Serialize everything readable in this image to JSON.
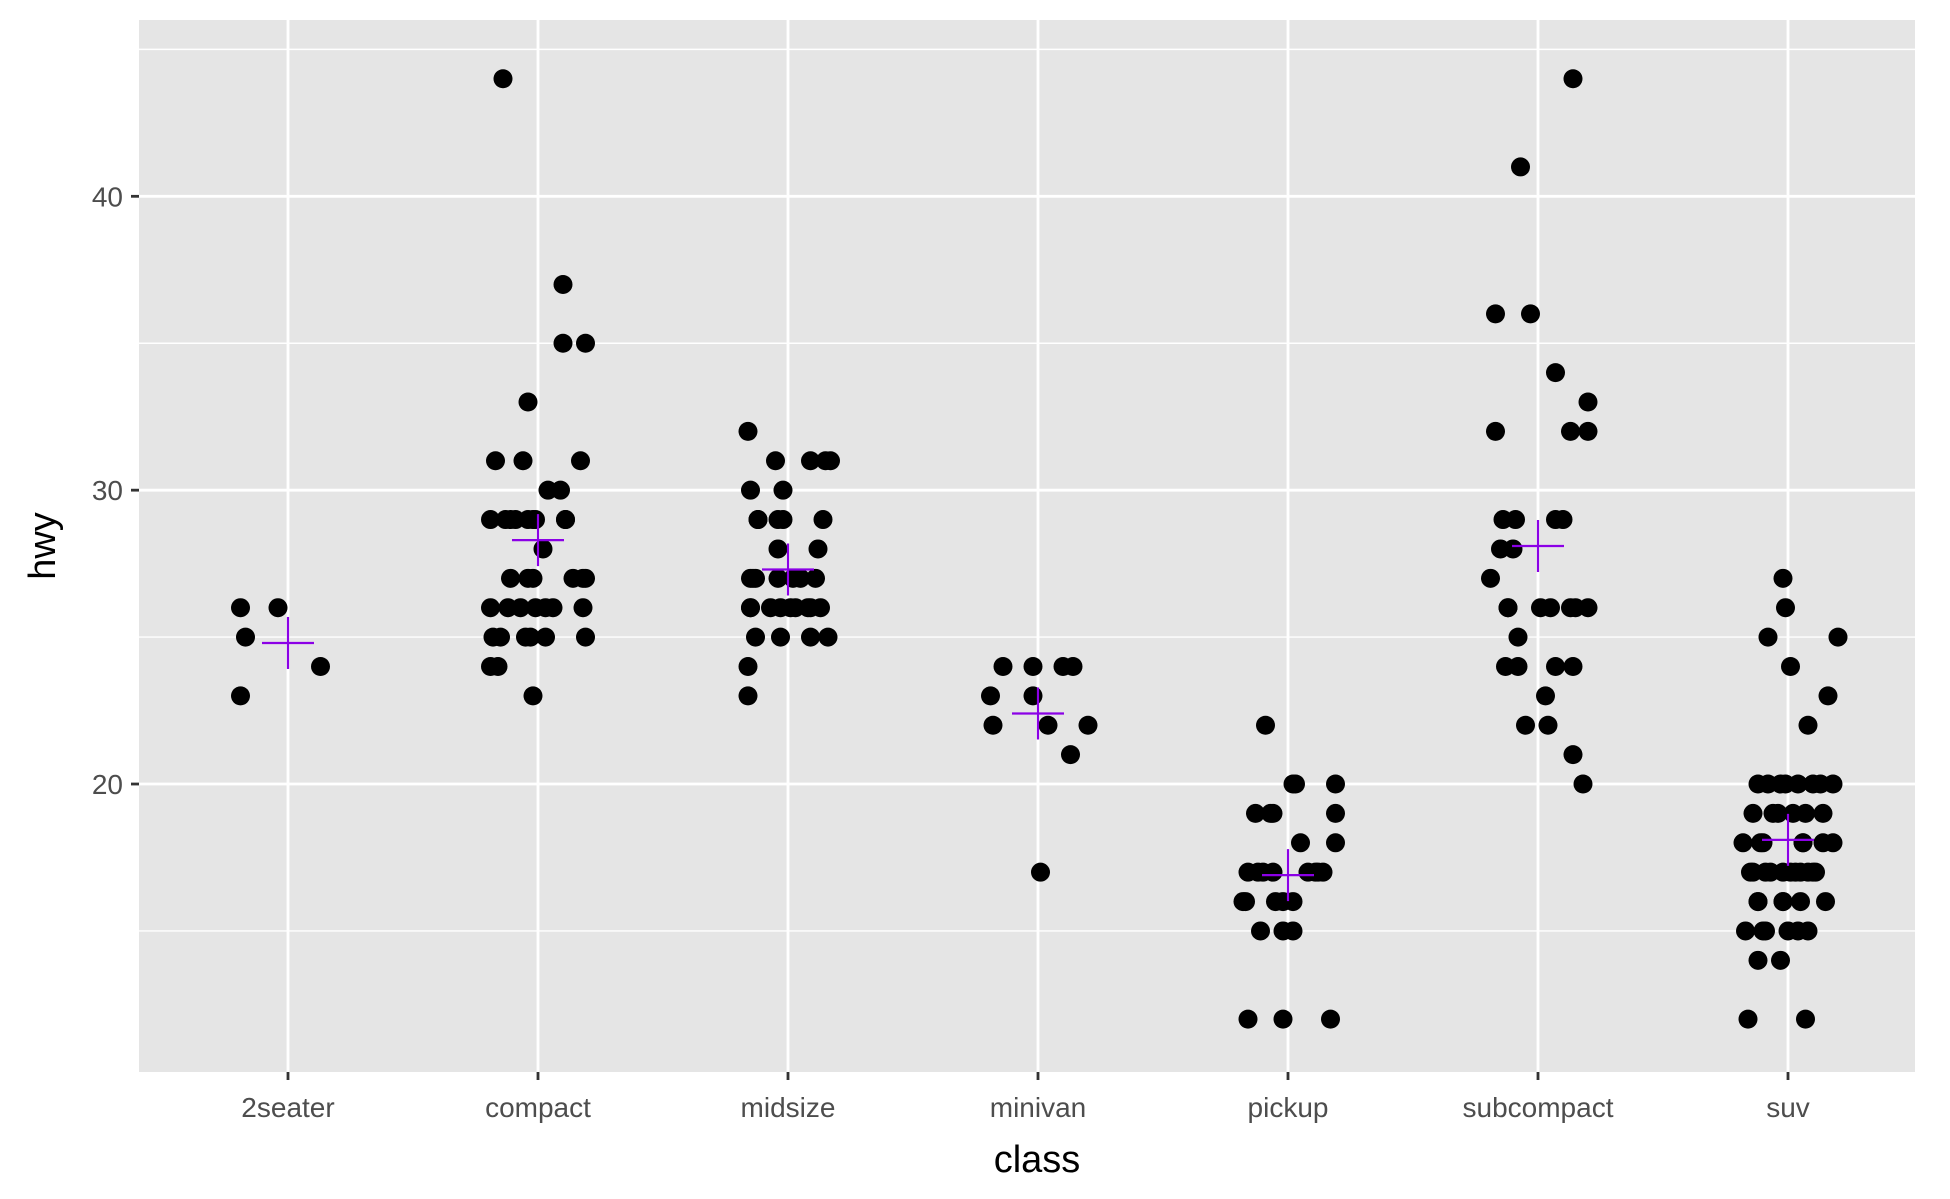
{
  "chart_data": {
    "type": "scatter",
    "xlabel": "class",
    "ylabel": "hwy",
    "categories": [
      "2seater",
      "compact",
      "midsize",
      "minivan",
      "pickup",
      "subcompact",
      "suv"
    ],
    "ylim": [
      10.2,
      46
    ],
    "y_ticks": [
      20,
      30,
      40
    ],
    "grid": true,
    "colors": {
      "panel": "#e5e5e5",
      "grid": "#ffffff",
      "points": "#000000",
      "mean_marker": "#8b00e6"
    },
    "means": [
      24.8,
      28.3,
      27.3,
      22.4,
      16.9,
      28.1,
      18.1
    ],
    "points": [
      {
        "class": "2seater",
        "x_offset": -0.19,
        "hwy": 23
      },
      {
        "class": "2seater",
        "x_offset": -0.19,
        "hwy": 26
      },
      {
        "class": "2seater",
        "x_offset": -0.17,
        "hwy": 25
      },
      {
        "class": "2seater",
        "x_offset": -0.04,
        "hwy": 26
      },
      {
        "class": "2seater",
        "x_offset": 0.13,
        "hwy": 24
      },
      {
        "class": "compact",
        "x_offset": -0.14,
        "hwy": 44
      },
      {
        "class": "compact",
        "x_offset": 0.1,
        "hwy": 37
      },
      {
        "class": "compact",
        "x_offset": 0.1,
        "hwy": 35
      },
      {
        "class": "compact",
        "x_offset": 0.19,
        "hwy": 35
      },
      {
        "class": "compact",
        "x_offset": -0.04,
        "hwy": 33
      },
      {
        "class": "compact",
        "x_offset": -0.17,
        "hwy": 31
      },
      {
        "class": "compact",
        "x_offset": 0.17,
        "hwy": 31
      },
      {
        "class": "compact",
        "x_offset": -0.06,
        "hwy": 31
      },
      {
        "class": "compact",
        "x_offset": 0.04,
        "hwy": 30
      },
      {
        "class": "compact",
        "x_offset": 0.09,
        "hwy": 30
      },
      {
        "class": "compact",
        "x_offset": -0.11,
        "hwy": 29
      },
      {
        "class": "compact",
        "x_offset": -0.09,
        "hwy": 29
      },
      {
        "class": "compact",
        "x_offset": -0.04,
        "hwy": 29
      },
      {
        "class": "compact",
        "x_offset": -0.01,
        "hwy": 29
      },
      {
        "class": "compact",
        "x_offset": 0.11,
        "hwy": 29
      },
      {
        "class": "compact",
        "x_offset": -0.19,
        "hwy": 29
      },
      {
        "class": "compact",
        "x_offset": -0.13,
        "hwy": 29
      },
      {
        "class": "compact",
        "x_offset": -0.02,
        "hwy": 29
      },
      {
        "class": "compact",
        "x_offset": 0.11,
        "hwy": 29
      },
      {
        "class": "compact",
        "x_offset": 0.02,
        "hwy": 28
      },
      {
        "class": "compact",
        "x_offset": -0.04,
        "hwy": 27
      },
      {
        "class": "compact",
        "x_offset": -0.11,
        "hwy": 27
      },
      {
        "class": "compact",
        "x_offset": -0.02,
        "hwy": 27
      },
      {
        "class": "compact",
        "x_offset": 0.18,
        "hwy": 27
      },
      {
        "class": "compact",
        "x_offset": 0.14,
        "hwy": 27
      },
      {
        "class": "compact",
        "x_offset": 0.19,
        "hwy": 27
      },
      {
        "class": "compact",
        "x_offset": -0.12,
        "hwy": 26
      },
      {
        "class": "compact",
        "x_offset": -0.07,
        "hwy": 26
      },
      {
        "class": "compact",
        "x_offset": 0.06,
        "hwy": 26
      },
      {
        "class": "compact",
        "x_offset": 0.18,
        "hwy": 26
      },
      {
        "class": "compact",
        "x_offset": -0.19,
        "hwy": 26
      },
      {
        "class": "compact",
        "x_offset": -0.01,
        "hwy": 26
      },
      {
        "class": "compact",
        "x_offset": 0.03,
        "hwy": 26
      },
      {
        "class": "compact",
        "x_offset": -0.18,
        "hwy": 25
      },
      {
        "class": "compact",
        "x_offset": -0.15,
        "hwy": 25
      },
      {
        "class": "compact",
        "x_offset": -0.05,
        "hwy": 25
      },
      {
        "class": "compact",
        "x_offset": -0.03,
        "hwy": 25
      },
      {
        "class": "compact",
        "x_offset": 0.03,
        "hwy": 25
      },
      {
        "class": "compact",
        "x_offset": 0.19,
        "hwy": 25
      },
      {
        "class": "compact",
        "x_offset": -0.19,
        "hwy": 24
      },
      {
        "class": "compact",
        "x_offset": -0.16,
        "hwy": 24
      },
      {
        "class": "compact",
        "x_offset": -0.02,
        "hwy": 23
      },
      {
        "class": "midsize",
        "x_offset": -0.16,
        "hwy": 32
      },
      {
        "class": "midsize",
        "x_offset": -0.05,
        "hwy": 31
      },
      {
        "class": "midsize",
        "x_offset": 0.09,
        "hwy": 31
      },
      {
        "class": "midsize",
        "x_offset": 0.15,
        "hwy": 31
      },
      {
        "class": "midsize",
        "x_offset": 0.17,
        "hwy": 31
      },
      {
        "class": "midsize",
        "x_offset": -0.15,
        "hwy": 30
      },
      {
        "class": "midsize",
        "x_offset": -0.02,
        "hwy": 30
      },
      {
        "class": "midsize",
        "x_offset": -0.12,
        "hwy": 29
      },
      {
        "class": "midsize",
        "x_offset": -0.12,
        "hwy": 29
      },
      {
        "class": "midsize",
        "x_offset": -0.04,
        "hwy": 29
      },
      {
        "class": "midsize",
        "x_offset": -0.02,
        "hwy": 29
      },
      {
        "class": "midsize",
        "x_offset": 0.14,
        "hwy": 29
      },
      {
        "class": "midsize",
        "x_offset": -0.04,
        "hwy": 28
      },
      {
        "class": "midsize",
        "x_offset": 0.12,
        "hwy": 28
      },
      {
        "class": "midsize",
        "x_offset": -0.15,
        "hwy": 27
      },
      {
        "class": "midsize",
        "x_offset": -0.13,
        "hwy": 27
      },
      {
        "class": "midsize",
        "x_offset": -0.04,
        "hwy": 27
      },
      {
        "class": "midsize",
        "x_offset": -0.14,
        "hwy": 27
      },
      {
        "class": "midsize",
        "x_offset": 0.02,
        "hwy": 27
      },
      {
        "class": "midsize",
        "x_offset": 0.05,
        "hwy": 27
      },
      {
        "class": "midsize",
        "x_offset": 0.11,
        "hwy": 27
      },
      {
        "class": "midsize",
        "x_offset": -0.15,
        "hwy": 26
      },
      {
        "class": "midsize",
        "x_offset": -0.07,
        "hwy": 26
      },
      {
        "class": "midsize",
        "x_offset": -0.03,
        "hwy": 26
      },
      {
        "class": "midsize",
        "x_offset": 0.03,
        "hwy": 26
      },
      {
        "class": "midsize",
        "x_offset": 0.08,
        "hwy": 26
      },
      {
        "class": "midsize",
        "x_offset": 0.13,
        "hwy": 26
      },
      {
        "class": "midsize",
        "x_offset": -0.15,
        "hwy": 26
      },
      {
        "class": "midsize",
        "x_offset": -0.13,
        "hwy": 25
      },
      {
        "class": "midsize",
        "x_offset": 0.01,
        "hwy": 26
      },
      {
        "class": "midsize",
        "x_offset": 0.09,
        "hwy": 26
      },
      {
        "class": "midsize",
        "x_offset": 0.09,
        "hwy": 25
      },
      {
        "class": "midsize",
        "x_offset": -0.03,
        "hwy": 25
      },
      {
        "class": "midsize",
        "x_offset": 0.16,
        "hwy": 25
      },
      {
        "class": "midsize",
        "x_offset": -0.16,
        "hwy": 24
      },
      {
        "class": "midsize",
        "x_offset": -0.16,
        "hwy": 23
      },
      {
        "class": "minivan",
        "x_offset": -0.14,
        "hwy": 24
      },
      {
        "class": "minivan",
        "x_offset": -0.02,
        "hwy": 24
      },
      {
        "class": "minivan",
        "x_offset": 0.1,
        "hwy": 24
      },
      {
        "class": "minivan",
        "x_offset": 0.14,
        "hwy": 24
      },
      {
        "class": "minivan",
        "x_offset": -0.19,
        "hwy": 23
      },
      {
        "class": "minivan",
        "x_offset": -0.02,
        "hwy": 23
      },
      {
        "class": "minivan",
        "x_offset": -0.18,
        "hwy": 22
      },
      {
        "class": "minivan",
        "x_offset": 0.04,
        "hwy": 22
      },
      {
        "class": "minivan",
        "x_offset": 0.2,
        "hwy": 22
      },
      {
        "class": "minivan",
        "x_offset": 0.13,
        "hwy": 21
      },
      {
        "class": "minivan",
        "x_offset": 0.01,
        "hwy": 17
      },
      {
        "class": "pickup",
        "x_offset": -0.09,
        "hwy": 22
      },
      {
        "class": "pickup",
        "x_offset": 0.02,
        "hwy": 20
      },
      {
        "class": "pickup",
        "x_offset": 0.03,
        "hwy": 20
      },
      {
        "class": "pickup",
        "x_offset": 0.19,
        "hwy": 20
      },
      {
        "class": "pickup",
        "x_offset": -0.13,
        "hwy": 19
      },
      {
        "class": "pickup",
        "x_offset": -0.06,
        "hwy": 19
      },
      {
        "class": "pickup",
        "x_offset": -0.07,
        "hwy": 19
      },
      {
        "class": "pickup",
        "x_offset": 0.19,
        "hwy": 19
      },
      {
        "class": "pickup",
        "x_offset": 0.05,
        "hwy": 18
      },
      {
        "class": "pickup",
        "x_offset": 0.19,
        "hwy": 18
      },
      {
        "class": "pickup",
        "x_offset": -0.16,
        "hwy": 17
      },
      {
        "class": "pickup",
        "x_offset": -0.12,
        "hwy": 17
      },
      {
        "class": "pickup",
        "x_offset": -0.06,
        "hwy": 17
      },
      {
        "class": "pickup",
        "x_offset": 0.11,
        "hwy": 17
      },
      {
        "class": "pickup",
        "x_offset": 0.14,
        "hwy": 17
      },
      {
        "class": "pickup",
        "x_offset": -0.1,
        "hwy": 17
      },
      {
        "class": "pickup",
        "x_offset": 0.08,
        "hwy": 17
      },
      {
        "class": "pickup",
        "x_offset": 0.12,
        "hwy": 17
      },
      {
        "class": "pickup",
        "x_offset": -0.17,
        "hwy": 16
      },
      {
        "class": "pickup",
        "x_offset": -0.18,
        "hwy": 16
      },
      {
        "class": "pickup",
        "x_offset": 0.02,
        "hwy": 16
      },
      {
        "class": "pickup",
        "x_offset": -0.05,
        "hwy": 16
      },
      {
        "class": "pickup",
        "x_offset": -0.02,
        "hwy": 16
      },
      {
        "class": "pickup",
        "x_offset": -0.11,
        "hwy": 15
      },
      {
        "class": "pickup",
        "x_offset": -0.02,
        "hwy": 15
      },
      {
        "class": "pickup",
        "x_offset": 0.02,
        "hwy": 15
      },
      {
        "class": "pickup",
        "x_offset": -0.16,
        "hwy": 12
      },
      {
        "class": "pickup",
        "x_offset": -0.02,
        "hwy": 12
      },
      {
        "class": "pickup",
        "x_offset": 0.17,
        "hwy": 12
      },
      {
        "class": "subcompact",
        "x_offset": 0.14,
        "hwy": 44
      },
      {
        "class": "subcompact",
        "x_offset": -0.07,
        "hwy": 41
      },
      {
        "class": "subcompact",
        "x_offset": -0.03,
        "hwy": 36
      },
      {
        "class": "subcompact",
        "x_offset": -0.17,
        "hwy": 36
      },
      {
        "class": "subcompact",
        "x_offset": 0.07,
        "hwy": 34
      },
      {
        "class": "subcompact",
        "x_offset": 0.2,
        "hwy": 33
      },
      {
        "class": "subcompact",
        "x_offset": 0.13,
        "hwy": 32
      },
      {
        "class": "subcompact",
        "x_offset": 0.2,
        "hwy": 32
      },
      {
        "class": "subcompact",
        "x_offset": -0.17,
        "hwy": 32
      },
      {
        "class": "subcompact",
        "x_offset": -0.14,
        "hwy": 29
      },
      {
        "class": "subcompact",
        "x_offset": -0.09,
        "hwy": 29
      },
      {
        "class": "subcompact",
        "x_offset": 0.07,
        "hwy": 29
      },
      {
        "class": "subcompact",
        "x_offset": 0.1,
        "hwy": 29
      },
      {
        "class": "subcompact",
        "x_offset": -0.1,
        "hwy": 28
      },
      {
        "class": "subcompact",
        "x_offset": -0.15,
        "hwy": 28
      },
      {
        "class": "subcompact",
        "x_offset": -0.19,
        "hwy": 27
      },
      {
        "class": "subcompact",
        "x_offset": -0.12,
        "hwy": 26
      },
      {
        "class": "subcompact",
        "x_offset": 0.15,
        "hwy": 26
      },
      {
        "class": "subcompact",
        "x_offset": -0.12,
        "hwy": 26
      },
      {
        "class": "subcompact",
        "x_offset": 0.05,
        "hwy": 26
      },
      {
        "class": "subcompact",
        "x_offset": 0.13,
        "hwy": 26
      },
      {
        "class": "subcompact",
        "x_offset": 0.2,
        "hwy": 26
      },
      {
        "class": "subcompact",
        "x_offset": 0.01,
        "hwy": 26
      },
      {
        "class": "subcompact",
        "x_offset": -0.08,
        "hwy": 25
      },
      {
        "class": "subcompact",
        "x_offset": -0.13,
        "hwy": 24
      },
      {
        "class": "subcompact",
        "x_offset": -0.08,
        "hwy": 24
      },
      {
        "class": "subcompact",
        "x_offset": 0.07,
        "hwy": 24
      },
      {
        "class": "subcompact",
        "x_offset": 0.14,
        "hwy": 24
      },
      {
        "class": "subcompact",
        "x_offset": 0.03,
        "hwy": 23
      },
      {
        "class": "subcompact",
        "x_offset": -0.05,
        "hwy": 22
      },
      {
        "class": "subcompact",
        "x_offset": 0.04,
        "hwy": 22
      },
      {
        "class": "subcompact",
        "x_offset": 0.14,
        "hwy": 21
      },
      {
        "class": "subcompact",
        "x_offset": 0.18,
        "hwy": 20
      },
      {
        "class": "suv",
        "x_offset": -0.02,
        "hwy": 27
      },
      {
        "class": "suv",
        "x_offset": -0.01,
        "hwy": 26
      },
      {
        "class": "suv",
        "x_offset": -0.08,
        "hwy": 25
      },
      {
        "class": "suv",
        "x_offset": 0.2,
        "hwy": 25
      },
      {
        "class": "suv",
        "x_offset": 0.01,
        "hwy": 24
      },
      {
        "class": "suv",
        "x_offset": 0.16,
        "hwy": 23
      },
      {
        "class": "suv",
        "x_offset": 0.08,
        "hwy": 22
      },
      {
        "class": "suv",
        "x_offset": -0.08,
        "hwy": 20
      },
      {
        "class": "suv",
        "x_offset": -0.03,
        "hwy": 20
      },
      {
        "class": "suv",
        "x_offset": -0.01,
        "hwy": 20
      },
      {
        "class": "suv",
        "x_offset": 0.04,
        "hwy": 20
      },
      {
        "class": "suv",
        "x_offset": 0.1,
        "hwy": 20
      },
      {
        "class": "suv",
        "x_offset": 0.13,
        "hwy": 20
      },
      {
        "class": "suv",
        "x_offset": 0.18,
        "hwy": 20
      },
      {
        "class": "suv",
        "x_offset": -0.12,
        "hwy": 20
      },
      {
        "class": "suv",
        "x_offset": -0.14,
        "hwy": 19
      },
      {
        "class": "suv",
        "x_offset": -0.04,
        "hwy": 19
      },
      {
        "class": "suv",
        "x_offset": 0.02,
        "hwy": 19
      },
      {
        "class": "suv",
        "x_offset": 0.07,
        "hwy": 19
      },
      {
        "class": "suv",
        "x_offset": 0.14,
        "hwy": 19
      },
      {
        "class": "suv",
        "x_offset": -0.06,
        "hwy": 19
      },
      {
        "class": "suv",
        "x_offset": -0.11,
        "hwy": 18
      },
      {
        "class": "suv",
        "x_offset": 0.06,
        "hwy": 18
      },
      {
        "class": "suv",
        "x_offset": 0.14,
        "hwy": 18
      },
      {
        "class": "suv",
        "x_offset": 0.18,
        "hwy": 18
      },
      {
        "class": "suv",
        "x_offset": -0.18,
        "hwy": 18
      },
      {
        "class": "suv",
        "x_offset": -0.1,
        "hwy": 18
      },
      {
        "class": "suv",
        "x_offset": 0.06,
        "hwy": 18
      },
      {
        "class": "suv",
        "x_offset": -0.14,
        "hwy": 17
      },
      {
        "class": "suv",
        "x_offset": -0.09,
        "hwy": 17
      },
      {
        "class": "suv",
        "x_offset": -0.02,
        "hwy": 17
      },
      {
        "class": "suv",
        "x_offset": 0.03,
        "hwy": 17
      },
      {
        "class": "suv",
        "x_offset": 0.08,
        "hwy": 17
      },
      {
        "class": "suv",
        "x_offset": 0.11,
        "hwy": 17
      },
      {
        "class": "suv",
        "x_offset": -0.15,
        "hwy": 17
      },
      {
        "class": "suv",
        "x_offset": -0.07,
        "hwy": 17
      },
      {
        "class": "suv",
        "x_offset": 0.01,
        "hwy": 17
      },
      {
        "class": "suv",
        "x_offset": 0.05,
        "hwy": 17
      },
      {
        "class": "suv",
        "x_offset": 0.1,
        "hwy": 17
      },
      {
        "class": "suv",
        "x_offset": -0.12,
        "hwy": 16
      },
      {
        "class": "suv",
        "x_offset": -0.02,
        "hwy": 16
      },
      {
        "class": "suv",
        "x_offset": 0.05,
        "hwy": 16
      },
      {
        "class": "suv",
        "x_offset": 0.15,
        "hwy": 16
      },
      {
        "class": "suv",
        "x_offset": -0.12,
        "hwy": 16
      },
      {
        "class": "suv",
        "x_offset": -0.02,
        "hwy": 16
      },
      {
        "class": "suv",
        "x_offset": -0.1,
        "hwy": 15
      },
      {
        "class": "suv",
        "x_offset": 0.08,
        "hwy": 15
      },
      {
        "class": "suv",
        "x_offset": -0.17,
        "hwy": 15
      },
      {
        "class": "suv",
        "x_offset": -0.09,
        "hwy": 15
      },
      {
        "class": "suv",
        "x_offset": 0.0,
        "hwy": 15
      },
      {
        "class": "suv",
        "x_offset": 0.04,
        "hwy": 15
      },
      {
        "class": "suv",
        "x_offset": -0.12,
        "hwy": 14
      },
      {
        "class": "suv",
        "x_offset": -0.03,
        "hwy": 14
      },
      {
        "class": "suv",
        "x_offset": 0.07,
        "hwy": 12
      },
      {
        "class": "suv",
        "x_offset": -0.16,
        "hwy": 12
      }
    ]
  }
}
